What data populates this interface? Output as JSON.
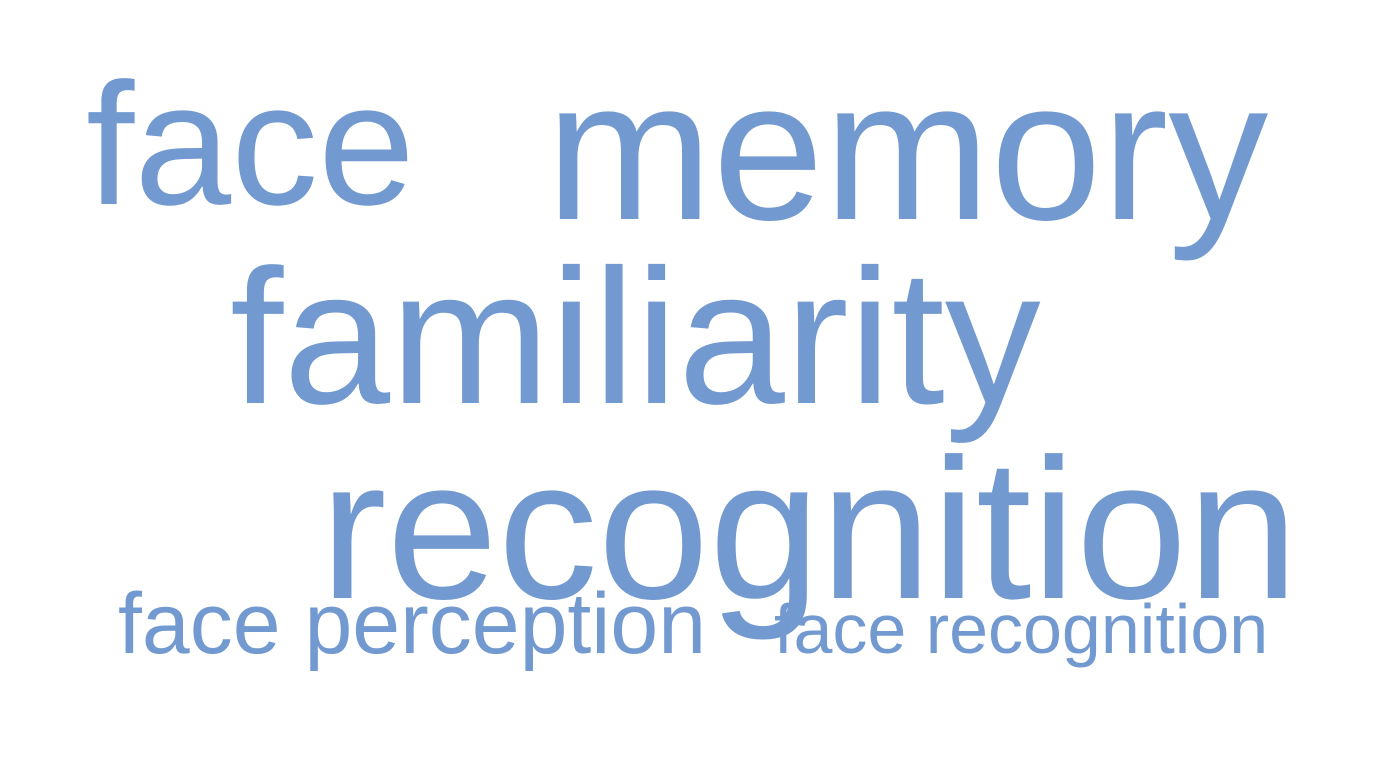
{
  "colors": {
    "word": "#7299d0",
    "background": "#ffffff"
  },
  "words": {
    "face": "face",
    "memory": "memory",
    "familiarity": "familiarity",
    "recognition": "recognition",
    "face_perception": "face perception",
    "face_recognition": "face recognition"
  }
}
